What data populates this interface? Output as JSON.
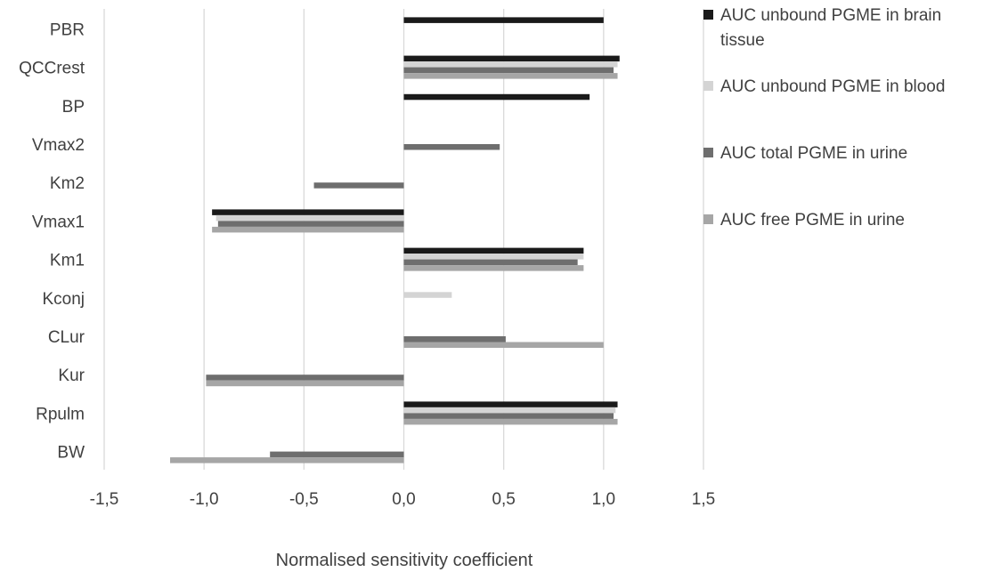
{
  "chart_data": {
    "type": "bar",
    "orientation": "horizontal",
    "categories": [
      "PBR",
      "QCCrest",
      "BP",
      "Vmax2",
      "Km2",
      "Vmax1",
      "Km1",
      "Kconj",
      "CLur",
      "Kur",
      "Rpulm",
      "BW"
    ],
    "series": [
      {
        "name": "AUC unbound PGME in brain tissue",
        "color": "#1a1a1a",
        "values": [
          1.0,
          1.08,
          0.93,
          0,
          0,
          -0.96,
          0.9,
          0,
          0,
          0,
          1.07,
          0
        ]
      },
      {
        "name": "AUC unbound PGME in blood",
        "color": "#d4d4d4",
        "values": [
          0,
          1.07,
          0,
          0,
          0,
          -0.94,
          0.9,
          0.24,
          0,
          0,
          1.06,
          0
        ]
      },
      {
        "name": "AUC total PGME in urine",
        "color": "#6e6e6e",
        "values": [
          0,
          1.05,
          0,
          0.48,
          -0.45,
          -0.93,
          0.87,
          0,
          0.51,
          -0.99,
          1.05,
          -0.67
        ]
      },
      {
        "name": "AUC free PGME in urine",
        "color": "#a6a6a6",
        "values": [
          0,
          1.07,
          0,
          0,
          0,
          -0.96,
          0.9,
          0,
          1.0,
          -0.99,
          1.07,
          -1.17
        ]
      }
    ],
    "xlim": [
      -1.5,
      1.5
    ],
    "xticks": [
      "-1,5",
      "-1,0",
      "-0,5",
      "0,0",
      "0,5",
      "1,0",
      "1,5"
    ],
    "xlabel": "Normalised sensitivity coefficient",
    "ylabel": "",
    "grid": "vertical",
    "legend_position": "right"
  }
}
